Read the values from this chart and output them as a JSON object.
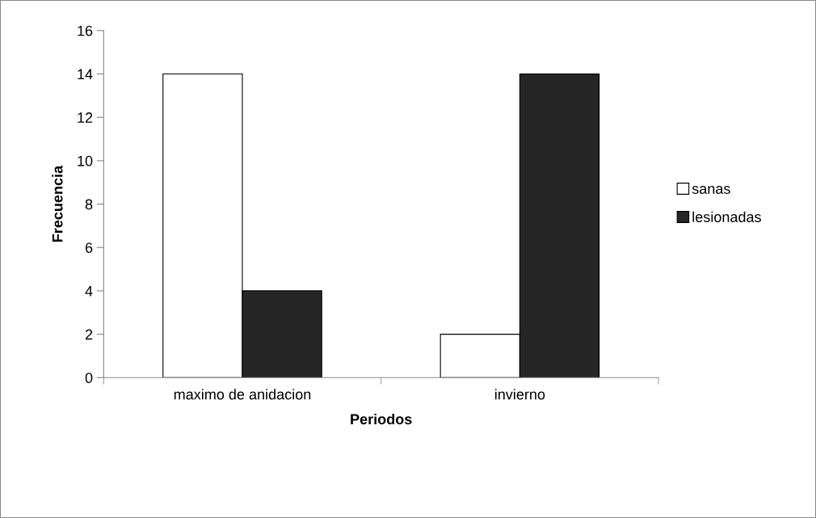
{
  "chart_data": {
    "type": "bar",
    "xlabel": "Periodos",
    "ylabel": "Frecuencia",
    "categories": [
      "maximo de anidacion",
      "invierno"
    ],
    "series": [
      {
        "name": "sanas",
        "color": "#ffffff",
        "values": [
          14,
          2
        ]
      },
      {
        "name": "lesionadas",
        "color": "#262626",
        "values": [
          4,
          14
        ]
      }
    ],
    "ylim": [
      0,
      16
    ],
    "yticks": [
      0,
      2,
      4,
      6,
      8,
      10,
      12,
      14,
      16
    ],
    "grid": false,
    "legend": "right"
  }
}
